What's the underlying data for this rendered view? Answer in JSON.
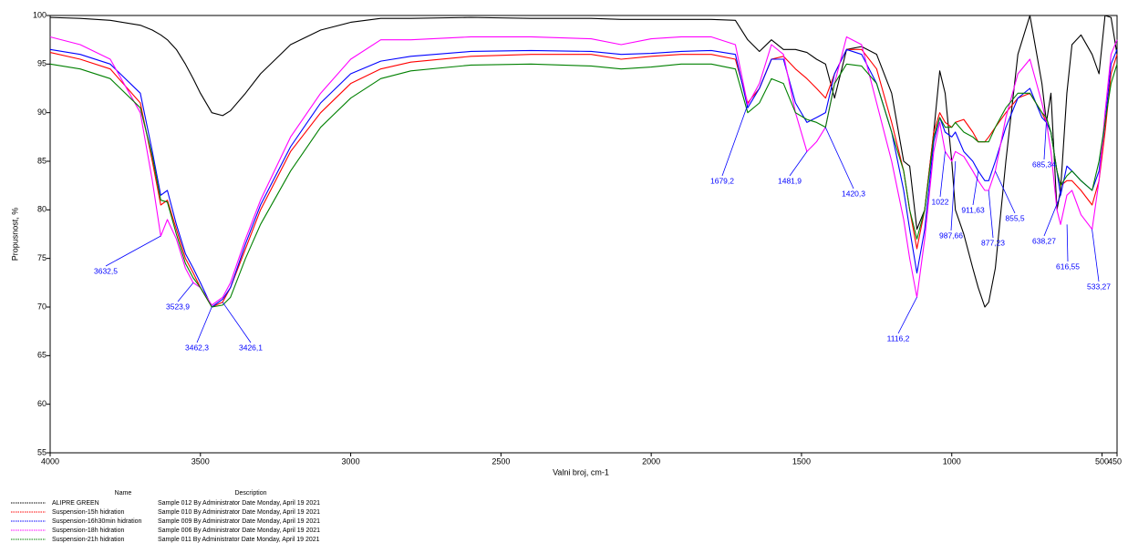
{
  "chart_data": {
    "type": "line",
    "x_label": "Valni broj, cm-1",
    "y_label": "Propusnost, %",
    "xlim": [
      4000,
      450
    ],
    "ylim": [
      55,
      100
    ],
    "xticks": [
      4000,
      3500,
      3000,
      2500,
      2000,
      1500,
      1000,
      500,
      450
    ],
    "yticks": [
      55,
      60,
      65,
      70,
      75,
      80,
      85,
      90,
      95,
      100
    ],
    "legend_headers": [
      "Name",
      "Description"
    ],
    "x": [
      4000,
      3900,
      3800,
      3700,
      3660,
      3632,
      3610,
      3580,
      3550,
      3524,
      3500,
      3462,
      3426,
      3400,
      3350,
      3300,
      3200,
      3100,
      3000,
      2900,
      2800,
      2600,
      2400,
      2200,
      2100,
      2000,
      1900,
      1800,
      1720,
      1679,
      1640,
      1600,
      1560,
      1520,
      1482,
      1450,
      1420,
      1390,
      1350,
      1300,
      1250,
      1200,
      1160,
      1140,
      1116,
      1090,
      1060,
      1040,
      1022,
      1000,
      988,
      960,
      930,
      912,
      890,
      877,
      855,
      820,
      780,
      740,
      700,
      685,
      670,
      650,
      638,
      617,
      600,
      570,
      533,
      510,
      490,
      470,
      450
    ],
    "series": [
      {
        "name": "ALIPRE GREEN",
        "description": "Sample 012 By Administrator Date Monday, April 19 2021",
        "color": "#000000",
        "values": [
          99.8,
          99.7,
          99.5,
          99.0,
          98.5,
          98,
          97.5,
          96.5,
          95,
          93.5,
          92,
          90,
          89.7,
          90.2,
          92,
          94,
          97,
          98.5,
          99.3,
          99.7,
          99.7,
          99.8,
          99.7,
          99.7,
          99.6,
          99.6,
          99.6,
          99.6,
          99.5,
          97.5,
          96.3,
          97.5,
          96.5,
          96.5,
          96.2,
          95.5,
          95,
          91.5,
          96.5,
          96.8,
          96,
          92,
          85,
          84.5,
          78,
          80,
          88,
          94.3,
          92,
          85,
          80,
          77.5,
          74,
          72,
          70,
          70.5,
          74,
          85,
          96,
          100,
          93,
          89,
          92,
          80,
          82,
          92,
          97,
          98,
          96,
          94,
          100,
          99.8,
          96
        ]
      },
      {
        "name": "Suspension-15h hidration",
        "description": "Sample 010 By Administrator Date Monday, April 19 2021",
        "color": "#ff0000",
        "values": [
          96.2,
          95.5,
          94.5,
          91,
          85,
          80.5,
          81,
          78,
          75,
          73.5,
          72,
          70,
          70.5,
          72,
          76,
          80,
          86,
          90,
          93,
          94.5,
          95.2,
          95.8,
          96,
          96,
          95.5,
          95.8,
          96,
          96,
          95.5,
          91,
          92.5,
          95.5,
          95.8,
          94.5,
          93.5,
          92.5,
          91.5,
          94,
          96.5,
          96.5,
          94.5,
          89,
          84,
          80,
          76,
          80,
          88,
          90,
          89,
          88.5,
          89,
          89.3,
          88,
          87,
          87,
          87.5,
          88.5,
          90,
          91.5,
          92,
          90,
          89,
          88,
          84,
          82.5,
          83,
          83,
          82,
          80.5,
          83,
          88,
          94,
          96
        ]
      },
      {
        "name": "Suspension-16h30min hidration",
        "description": "Sample 009 By Administrator Date Monday, April 19 2021",
        "color": "#0000ff",
        "values": [
          96.5,
          96,
          95,
          92,
          86,
          81.5,
          82,
          78.5,
          75.5,
          74,
          72.5,
          70,
          70.8,
          72,
          76.5,
          80.5,
          86.5,
          91,
          94,
          95.3,
          95.8,
          96.3,
          96.4,
          96.3,
          96,
          96.1,
          96.3,
          96.4,
          96,
          90.5,
          92.5,
          95.5,
          95.5,
          91,
          89,
          89.5,
          90,
          94,
          96.5,
          96,
          93,
          88,
          82,
          78,
          73.5,
          78,
          87,
          89.5,
          88,
          87.5,
          88,
          86,
          85,
          84,
          83,
          83,
          85,
          88.5,
          91.5,
          92.5,
          89.5,
          89,
          88,
          84,
          81.5,
          84.5,
          84,
          83,
          82,
          84,
          89,
          95,
          96.5
        ]
      },
      {
        "name": "Suspension-18h hidration",
        "description": "Sample 006 By Administrator Date Monday, April 19 2021",
        "color": "#ff00ff",
        "values": [
          97.8,
          97,
          95.5,
          90,
          83,
          77.3,
          79,
          77,
          74,
          72.5,
          72,
          70.2,
          71,
          72.5,
          77,
          81,
          87.5,
          92,
          95.5,
          97.5,
          97.5,
          97.8,
          97.8,
          97.6,
          97,
          97.6,
          97.8,
          97.8,
          97,
          90.8,
          93,
          97,
          96,
          90,
          86,
          87,
          88.5,
          93,
          97.8,
          97,
          91,
          85,
          79,
          75,
          71,
          77,
          86,
          89,
          86,
          85,
          86,
          85.5,
          84,
          83,
          82,
          82,
          84,
          89.5,
          94,
          95.5,
          91,
          89,
          86,
          80,
          78.5,
          81.5,
          82,
          79.5,
          78,
          83,
          90,
          96,
          97.5
        ]
      },
      {
        "name": "Suspension-21h hidration",
        "description": "Sample 011 By Administrator Date Monday, April 19 2021",
        "color": "#008000",
        "values": [
          95,
          94.5,
          93.5,
          90.5,
          85.5,
          81,
          80.8,
          77.5,
          74.5,
          73,
          72,
          70,
          70.2,
          71,
          75,
          78.5,
          84,
          88.5,
          91.5,
          93.5,
          94.3,
          94.9,
          95,
          94.8,
          94.5,
          94.7,
          95,
          95,
          94.5,
          90,
          91,
          93.5,
          93,
          90,
          89.3,
          89,
          88.5,
          93,
          95,
          94.8,
          93,
          88,
          84,
          80,
          77,
          80,
          87.5,
          89.5,
          88.5,
          88.5,
          89,
          88,
          87.5,
          87,
          87,
          87,
          88.5,
          90.5,
          92,
          92,
          90,
          89.5,
          88,
          84,
          82.5,
          83.5,
          84,
          83,
          82,
          85,
          89,
          93,
          95
        ]
      }
    ],
    "annotations": [
      {
        "label": "3632,5",
        "x": 3632.5,
        "y": 77.3
      },
      {
        "label": "3523,9",
        "x": 3523.9,
        "y": 72.5
      },
      {
        "label": "3462,3",
        "x": 3462.3,
        "y": 70
      },
      {
        "label": "3426,1",
        "x": 3426.1,
        "y": 70.5
      },
      {
        "label": "1679,2",
        "x": 1679.2,
        "y": 90.8
      },
      {
        "label": "1481,9",
        "x": 1481.9,
        "y": 86
      },
      {
        "label": "1420,3",
        "x": 1420.3,
        "y": 88.5
      },
      {
        "label": "1116,2",
        "x": 1116.2,
        "y": 71
      },
      {
        "label": "1022",
        "x": 1022,
        "y": 86
      },
      {
        "label": "987,66",
        "x": 987.66,
        "y": 85
      },
      {
        "label": "911,63",
        "x": 911.63,
        "y": 84
      },
      {
        "label": "877,23",
        "x": 877.23,
        "y": 82
      },
      {
        "label": "855,5",
        "x": 855.5,
        "y": 84
      },
      {
        "label": "685,34",
        "x": 685.34,
        "y": 89
      },
      {
        "label": "638,27",
        "x": 638.27,
        "y": 81.5
      },
      {
        "label": "616,55",
        "x": 616.55,
        "y": 78.5
      },
      {
        "label": "533,27",
        "x": 533.27,
        "y": 78
      }
    ]
  }
}
